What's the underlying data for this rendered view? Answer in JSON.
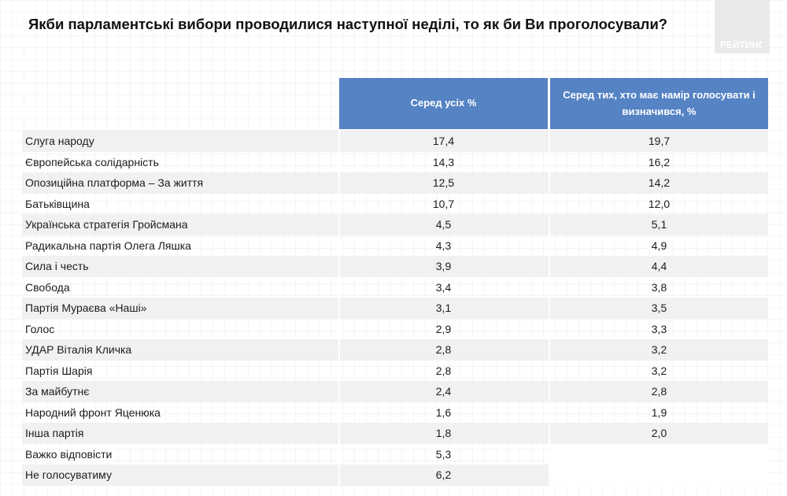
{
  "title": "Якби парламентські вибори проводилися наступної неділі, то як би Ви проголосували?",
  "logo_text": "РЕЙТИНГ",
  "colors": {
    "header_bg": "#5583c4",
    "row_shade": "#f1f1f2"
  },
  "chart_data": {
    "type": "table",
    "columns": [
      "",
      "Серед усіх %",
      "Серед тих, хто має намір голосувати і визначився, %"
    ],
    "rows": [
      {
        "party": "Слуга народу",
        "all": "17,4",
        "decided": "19,7"
      },
      {
        "party": "Європейська солідарність",
        "all": "14,3",
        "decided": "16,2"
      },
      {
        "party": "Опозиційна платформа – За життя",
        "all": "12,5",
        "decided": "14,2"
      },
      {
        "party": "Батьківщина",
        "all": "10,7",
        "decided": "12,0"
      },
      {
        "party": "Українська стратегія Гройсмана",
        "all": "4,5",
        "decided": "5,1"
      },
      {
        "party": "Радикальна партія Олега Ляшка",
        "all": "4,3",
        "decided": "4,9"
      },
      {
        "party": "Сила і честь",
        "all": "3,9",
        "decided": "4,4"
      },
      {
        "party": "Свобода",
        "all": "3,4",
        "decided": "3,8"
      },
      {
        "party": "Партія Мураєва «Наші»",
        "all": "3,1",
        "decided": "3,5"
      },
      {
        "party": "Голос",
        "all": "2,9",
        "decided": "3,3"
      },
      {
        "party": "УДАР Віталія Кличка",
        "all": "2,8",
        "decided": "3,2"
      },
      {
        "party": "Партія Шарія",
        "all": "2,8",
        "decided": "3,2"
      },
      {
        "party": "За майбутнє",
        "all": "2,4",
        "decided": "2,8"
      },
      {
        "party": "Народний фронт Яценюка",
        "all": "1,6",
        "decided": "1,9"
      },
      {
        "party": "Інша партія",
        "all": "1,8",
        "decided": "2,0"
      },
      {
        "party": "Важко відповісти",
        "all": "5,3",
        "decided": ""
      },
      {
        "party": "Не голосуватиму",
        "all": "6,2",
        "decided": ""
      }
    ]
  }
}
